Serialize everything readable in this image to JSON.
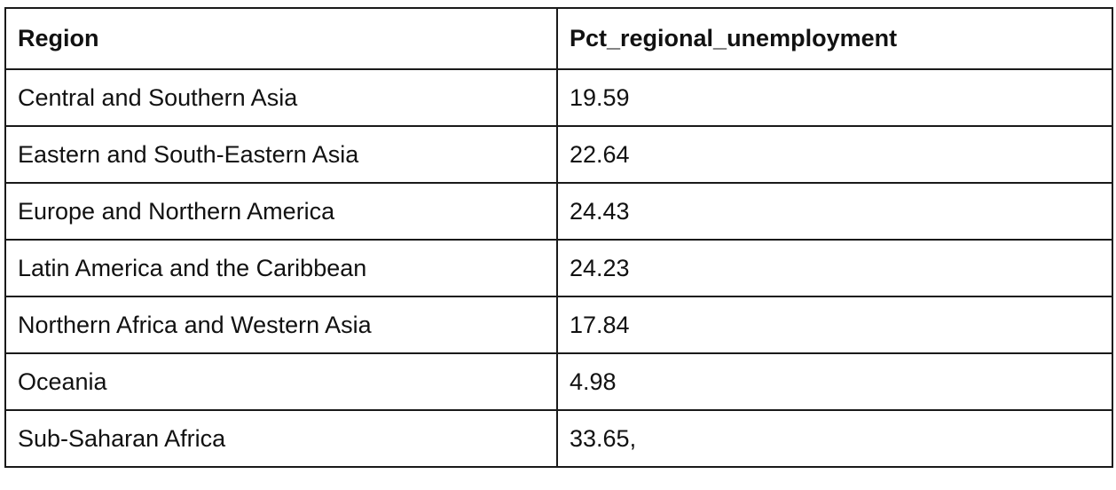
{
  "table": {
    "headers": [
      "Region",
      "Pct_regional_unemployment"
    ],
    "rows": [
      [
        "Central and Southern Asia",
        "19.59"
      ],
      [
        "Eastern and South-Eastern Asia",
        "22.64"
      ],
      [
        "Europe and Northern America",
        "24.43"
      ],
      [
        "Latin America and the Caribbean",
        "24.23"
      ],
      [
        "Northern Africa and Western Asia",
        "17.84"
      ],
      [
        "Oceania",
        "4.98"
      ],
      [
        "Sub-Saharan Africa",
        "33.65,"
      ]
    ]
  }
}
